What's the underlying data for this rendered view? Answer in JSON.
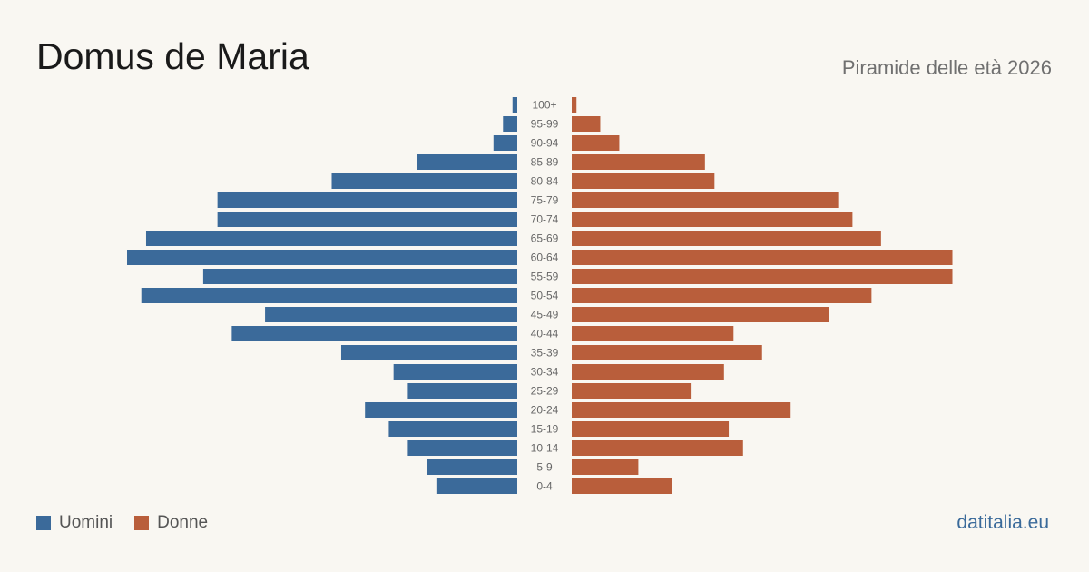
{
  "header": {
    "title": "Domus de Maria",
    "subtitle": "Piramide delle età 2026"
  },
  "legend": {
    "men_label": "Uomini",
    "women_label": "Donne"
  },
  "brand": "datitalia.eu",
  "colors": {
    "men": "#3b6a9a",
    "women": "#b95e3b",
    "background": "#f9f7f2"
  },
  "chart_data": {
    "type": "bar",
    "orientation": "horizontal",
    "subtype": "population-pyramid",
    "title": "Domus de Maria",
    "subtitle": "Piramide delle età 2026",
    "categories": [
      "100+",
      "95-99",
      "90-94",
      "85-89",
      "80-84",
      "75-79",
      "70-74",
      "65-69",
      "60-64",
      "55-59",
      "50-54",
      "45-49",
      "40-44",
      "35-39",
      "30-34",
      "25-29",
      "20-24",
      "15-19",
      "10-14",
      "5-9",
      "0-4"
    ],
    "series": [
      {
        "name": "Uomini",
        "side": "left",
        "values": [
          1,
          3,
          5,
          21,
          39,
          63,
          63,
          78,
          82,
          66,
          79,
          53,
          60,
          37,
          26,
          23,
          32,
          27,
          23,
          19,
          17
        ]
      },
      {
        "name": "Donne",
        "side": "right",
        "values": [
          1,
          6,
          10,
          28,
          30,
          56,
          59,
          65,
          80,
          80,
          63,
          54,
          34,
          40,
          32,
          25,
          46,
          33,
          36,
          14,
          21
        ]
      }
    ],
    "xlim": [
      0,
      82
    ],
    "axis_visible": false,
    "grid": false,
    "legend_position": "bottom-left"
  }
}
